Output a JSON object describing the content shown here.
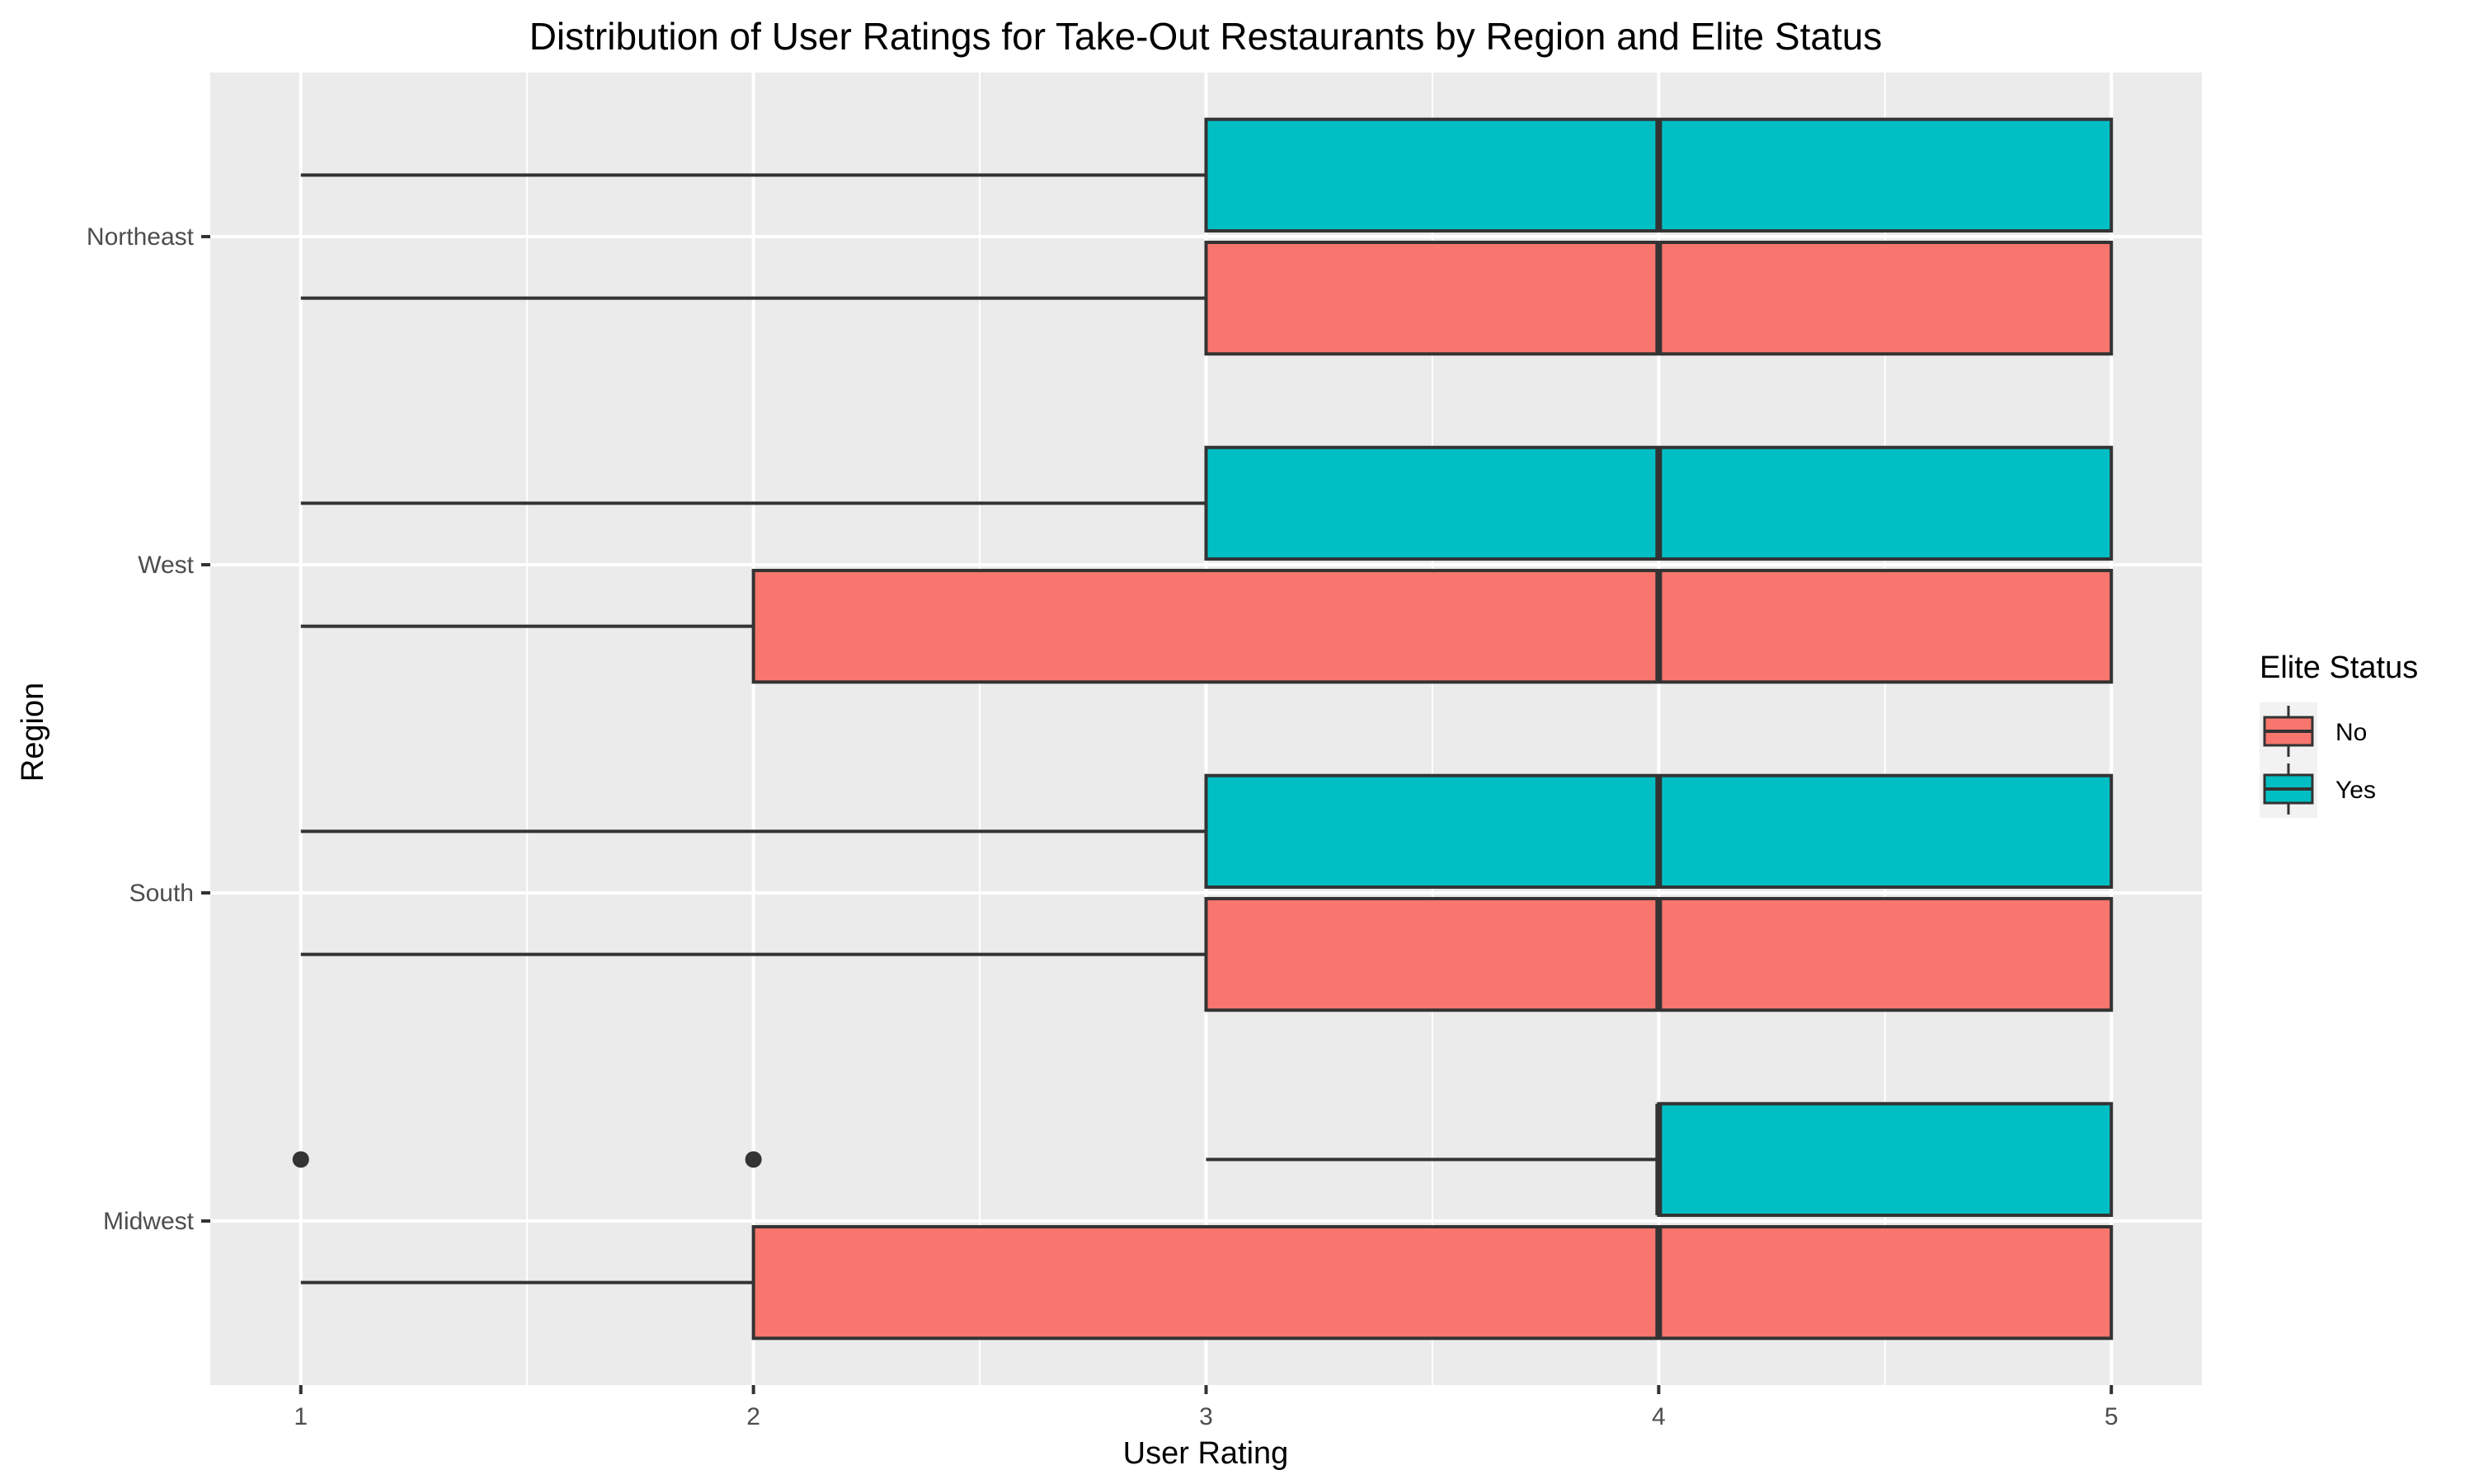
{
  "chart_data": {
    "type": "boxplot",
    "orientation": "horizontal",
    "title": "Distribution of User Ratings for Take-Out Restaurants by Region and Elite Status",
    "xlabel": "User Rating",
    "ylabel": "Region",
    "xlim": [
      0.8,
      5.2
    ],
    "x_ticks": [
      "1",
      "2",
      "3",
      "4",
      "5"
    ],
    "x_tick_values": [
      1,
      2,
      3,
      4,
      5
    ],
    "x_minor_gridlines": [
      1.5,
      2.5,
      3.5,
      4.5
    ],
    "categories": [
      "Midwest",
      "South",
      "West",
      "Northeast"
    ],
    "grid": true,
    "legend": {
      "title": "Elite Status",
      "placement": "right"
    },
    "series": [
      {
        "name": "No",
        "color": "#F8766D",
        "boxes": [
          {
            "category": "Midwest",
            "min": 1,
            "q1": 2,
            "median": 4,
            "q3": 5,
            "max": 5,
            "outliers": []
          },
          {
            "category": "South",
            "min": 1,
            "q1": 3,
            "median": 4,
            "q3": 5,
            "max": 5,
            "outliers": []
          },
          {
            "category": "West",
            "min": 1,
            "q1": 2,
            "median": 4,
            "q3": 5,
            "max": 5,
            "outliers": []
          },
          {
            "category": "Northeast",
            "min": 1,
            "q1": 3,
            "median": 4,
            "q3": 5,
            "max": 5,
            "outliers": []
          }
        ]
      },
      {
        "name": "Yes",
        "color": "#00BFC4",
        "boxes": [
          {
            "category": "Midwest",
            "min": 3,
            "q1": 4,
            "median": 4,
            "q3": 5,
            "max": 5,
            "outliers": [
              1,
              2
            ]
          },
          {
            "category": "South",
            "min": 1,
            "q1": 3,
            "median": 4,
            "q3": 5,
            "max": 5,
            "outliers": []
          },
          {
            "category": "West",
            "min": 1,
            "q1": 3,
            "median": 4,
            "q3": 5,
            "max": 5,
            "outliers": []
          },
          {
            "category": "Northeast",
            "min": 1,
            "q1": 3,
            "median": 4,
            "q3": 5,
            "max": 5,
            "outliers": []
          }
        ]
      }
    ],
    "panel_color": "#EBEBEB",
    "gridline_color": "#FFFFFF",
    "line_color": "#333333"
  }
}
